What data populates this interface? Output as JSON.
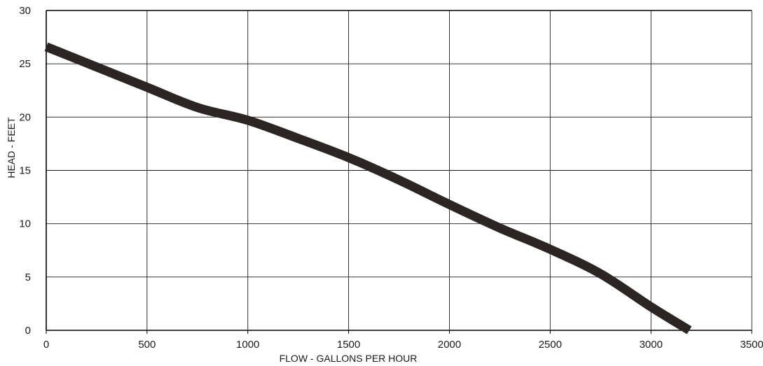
{
  "chart_data": {
    "type": "line",
    "title": "",
    "xlabel": "FLOW - GALLONS PER HOUR",
    "ylabel": "HEAD - FEET",
    "xlim": [
      0,
      3500
    ],
    "ylim": [
      0,
      30
    ],
    "xticks": [
      0,
      500,
      1000,
      1500,
      2000,
      2500,
      3000,
      3500
    ],
    "yticks": [
      0,
      5,
      10,
      15,
      20,
      25,
      30
    ],
    "grid": true,
    "legend": "none",
    "line_color": "#2b2524",
    "series": [
      {
        "x": [
          0,
          250,
          500,
          750,
          1000,
          1250,
          1500,
          1750,
          2000,
          2250,
          2500,
          2750,
          3000,
          3190
        ],
        "y": [
          26.6,
          24.7,
          22.8,
          20.9,
          19.7,
          18.0,
          16.2,
          14.1,
          11.8,
          9.6,
          7.6,
          5.3,
          2.2,
          0
        ]
      }
    ]
  }
}
